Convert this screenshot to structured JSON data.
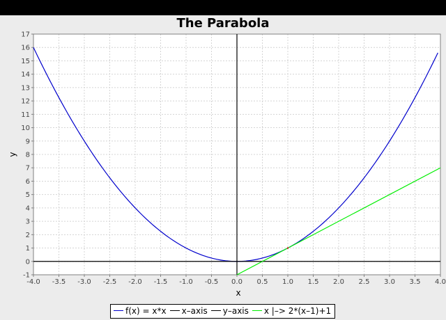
{
  "chart_data": {
    "type": "line",
    "title": "The Parabola",
    "xlabel": "x",
    "ylabel": "y",
    "xlim": [
      -4.0,
      4.0
    ],
    "ylim": [
      -1,
      17
    ],
    "grid": true,
    "legend_position": "bottom",
    "x_ticks": [
      "-4.0",
      "-3.5",
      "-3.0",
      "-2.5",
      "-2.0",
      "-1.5",
      "-1.0",
      "-0.5",
      "0.0",
      "0.5",
      "1.0",
      "1.5",
      "2.0",
      "2.5",
      "3.0",
      "3.5",
      "4.0"
    ],
    "y_ticks": [
      "-1",
      "0",
      "1",
      "2",
      "3",
      "4",
      "5",
      "6",
      "7",
      "8",
      "9",
      "10",
      "11",
      "12",
      "13",
      "14",
      "15",
      "16",
      "17"
    ],
    "series": [
      {
        "name": "f(x) = x*x",
        "color": "#0000cc",
        "x": [
          -4.0,
          -3.5,
          -3.0,
          -2.5,
          -2.0,
          -1.5,
          -1.0,
          -0.5,
          0.0,
          0.5,
          1.0,
          1.5,
          2.0,
          2.5,
          3.0,
          3.5,
          3.95
        ],
        "y": [
          16.0,
          12.25,
          9.0,
          6.25,
          4.0,
          2.25,
          1.0,
          0.25,
          0.0,
          0.25,
          1.0,
          2.25,
          4.0,
          6.25,
          9.0,
          12.25,
          15.6
        ]
      },
      {
        "name": "x–axis",
        "color": "#000000",
        "x": [
          -4.0,
          4.0
        ],
        "y": [
          0,
          0
        ]
      },
      {
        "name": "y–axis",
        "color": "#000000",
        "x": [
          0,
          0
        ],
        "y": [
          -1,
          17
        ]
      },
      {
        "name": "x |–> 2*(x–1)+1",
        "color": "#00ee00",
        "x": [
          0.0,
          4.0
        ],
        "y": [
          -1.0,
          7.0
        ]
      }
    ],
    "annotations": [
      {
        "x": 1.0,
        "y": 1.0,
        "label": "",
        "color": "#cc0000"
      }
    ]
  }
}
